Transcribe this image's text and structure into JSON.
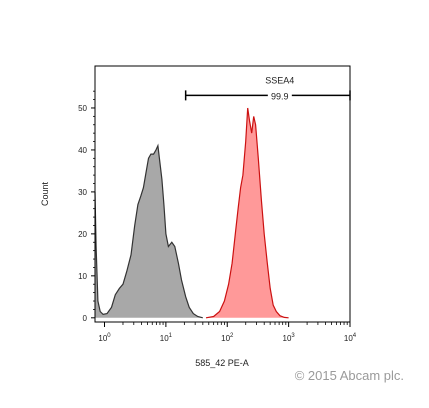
{
  "chart_data": {
    "type": "area",
    "xlabel": "585_42 PE-A",
    "ylabel": "Count",
    "x_scale": "log",
    "xlim": [
      0.7,
      10000
    ],
    "ylim": [
      -1,
      60
    ],
    "y_ticks": [
      "0",
      "10",
      "20",
      "30",
      "40",
      "50"
    ],
    "x_ticks": [
      {
        "value": 1,
        "base": "10",
        "exp": "0"
      },
      {
        "value": 10,
        "base": "10",
        "exp": "1"
      },
      {
        "value": 100,
        "base": "10",
        "exp": "2"
      },
      {
        "value": 1000,
        "base": "10",
        "exp": "3"
      },
      {
        "value": 10000,
        "base": "10",
        "exp": "4"
      }
    ],
    "series": [
      {
        "color": "#a8a8a8",
        "line": "#333333",
        "points": [
          [
            0.7,
            30
          ],
          [
            0.73,
            17
          ],
          [
            0.78,
            4
          ],
          [
            0.85,
            1.5
          ],
          [
            0.95,
            0.8
          ],
          [
            1.1,
            1
          ],
          [
            1.3,
            2.5
          ],
          [
            1.5,
            5.5
          ],
          [
            1.75,
            7
          ],
          [
            2,
            8
          ],
          [
            2.3,
            11
          ],
          [
            2.7,
            15
          ],
          [
            3.1,
            22
          ],
          [
            3.5,
            27
          ],
          [
            3.9,
            29
          ],
          [
            4.3,
            31
          ],
          [
            4.8,
            35
          ],
          [
            5.2,
            38
          ],
          [
            5.7,
            39
          ],
          [
            6.3,
            39
          ],
          [
            6.9,
            40
          ],
          [
            7.4,
            41
          ],
          [
            8,
            37
          ],
          [
            8.6,
            33
          ],
          [
            9.3,
            27
          ],
          [
            10,
            20
          ],
          [
            11,
            17
          ],
          [
            12.5,
            18
          ],
          [
            14,
            17
          ],
          [
            16,
            13
          ],
          [
            18,
            9
          ],
          [
            21,
            5
          ],
          [
            24,
            2.5
          ],
          [
            28,
            1
          ],
          [
            33,
            0.3
          ],
          [
            40,
            0
          ]
        ]
      },
      {
        "color": "#ff9999",
        "line": "#cc1111",
        "points": [
          [
            45,
            0
          ],
          [
            60,
            0.3
          ],
          [
            75,
            1.5
          ],
          [
            90,
            4
          ],
          [
            105,
            8
          ],
          [
            120,
            13
          ],
          [
            135,
            20
          ],
          [
            150,
            26
          ],
          [
            165,
            31
          ],
          [
            180,
            34
          ],
          [
            200,
            42
          ],
          [
            215,
            50
          ],
          [
            230,
            47
          ],
          [
            250,
            44
          ],
          [
            270,
            48
          ],
          [
            290,
            46
          ],
          [
            320,
            38
          ],
          [
            360,
            28
          ],
          [
            400,
            20
          ],
          [
            450,
            13
          ],
          [
            500,
            7
          ],
          [
            560,
            3
          ],
          [
            630,
            1.5
          ],
          [
            720,
            0.5
          ],
          [
            850,
            0.1
          ],
          [
            1000,
            0
          ]
        ]
      }
    ],
    "gate": {
      "label": "SSEA4",
      "value": "99.9",
      "x_start": 21,
      "x_end": 10000,
      "y": 53
    }
  },
  "watermark": "© 2015 Abcam plc."
}
